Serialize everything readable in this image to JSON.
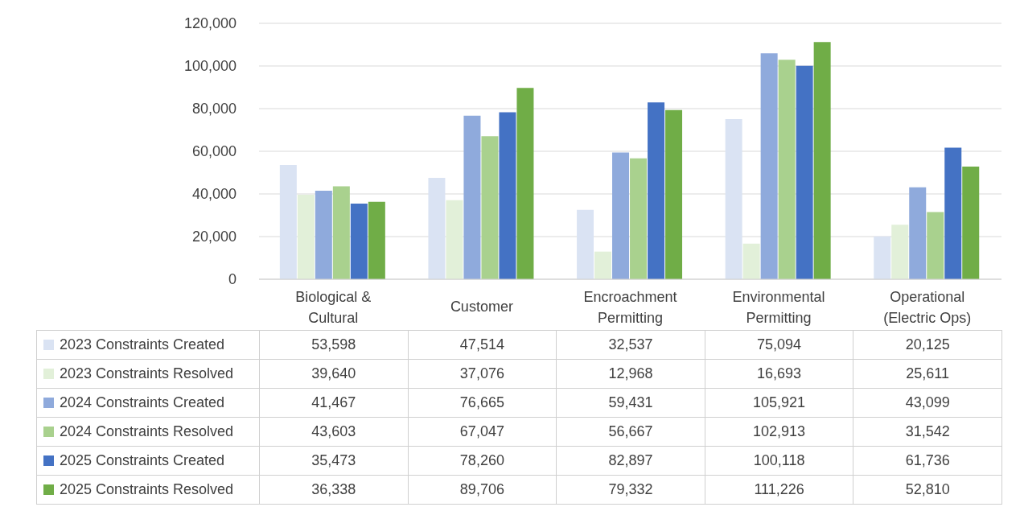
{
  "chart_data": {
    "type": "bar",
    "categories": [
      "Biological & Cultural",
      "Customer",
      "Encroachment Permitting",
      "Environmental Permitting",
      "Operational (Electric Ops)"
    ],
    "series": [
      {
        "name": "2023 Constraints Created",
        "color": "#dae3f3",
        "values": [
          53598,
          47514,
          32537,
          75094,
          20125
        ],
        "value_labels": [
          "53,598",
          "47,514",
          "32,537",
          "75,094",
          "20,125"
        ]
      },
      {
        "name": "2023 Constraints Resolved",
        "color": "#e2f0d9",
        "values": [
          39640,
          37076,
          12968,
          16693,
          25611
        ],
        "value_labels": [
          "39,640",
          "37,076",
          "12,968",
          "16,693",
          "25,611"
        ]
      },
      {
        "name": "2024 Constraints Created",
        "color": "#8faadc",
        "values": [
          41467,
          76665,
          59431,
          105921,
          43099
        ],
        "value_labels": [
          "41,467",
          "76,665",
          "59,431",
          "105,921",
          "43,099"
        ]
      },
      {
        "name": "2024 Constraints Resolved",
        "color": "#a9d18e",
        "values": [
          43603,
          67047,
          56667,
          102913,
          31542
        ],
        "value_labels": [
          "43,603",
          "67,047",
          "56,667",
          "102,913",
          "31,542"
        ]
      },
      {
        "name": "2025 Constraints Created",
        "color": "#4472c4",
        "values": [
          35473,
          78260,
          82897,
          100118,
          61736
        ],
        "value_labels": [
          "35,473",
          "78,260",
          "82,897",
          "100,118",
          "61,736"
        ]
      },
      {
        "name": "2025 Constraints Resolved",
        "color": "#70ad47",
        "values": [
          36338,
          89706,
          79332,
          111226,
          52810
        ],
        "value_labels": [
          "36,338",
          "89,706",
          "79,332",
          "111,226",
          "52,810"
        ]
      }
    ],
    "ylim": [
      0,
      120000
    ],
    "yticks": [
      {
        "value": 0,
        "label": "0"
      },
      {
        "value": 20000,
        "label": "20,000"
      },
      {
        "value": 40000,
        "label": "40,000"
      },
      {
        "value": 60000,
        "label": "60,000"
      },
      {
        "value": 80000,
        "label": "80,000"
      },
      {
        "value": 100000,
        "label": "100,000"
      },
      {
        "value": 120000,
        "label": "120,000"
      }
    ],
    "grid": "y",
    "legend": "bottom"
  }
}
